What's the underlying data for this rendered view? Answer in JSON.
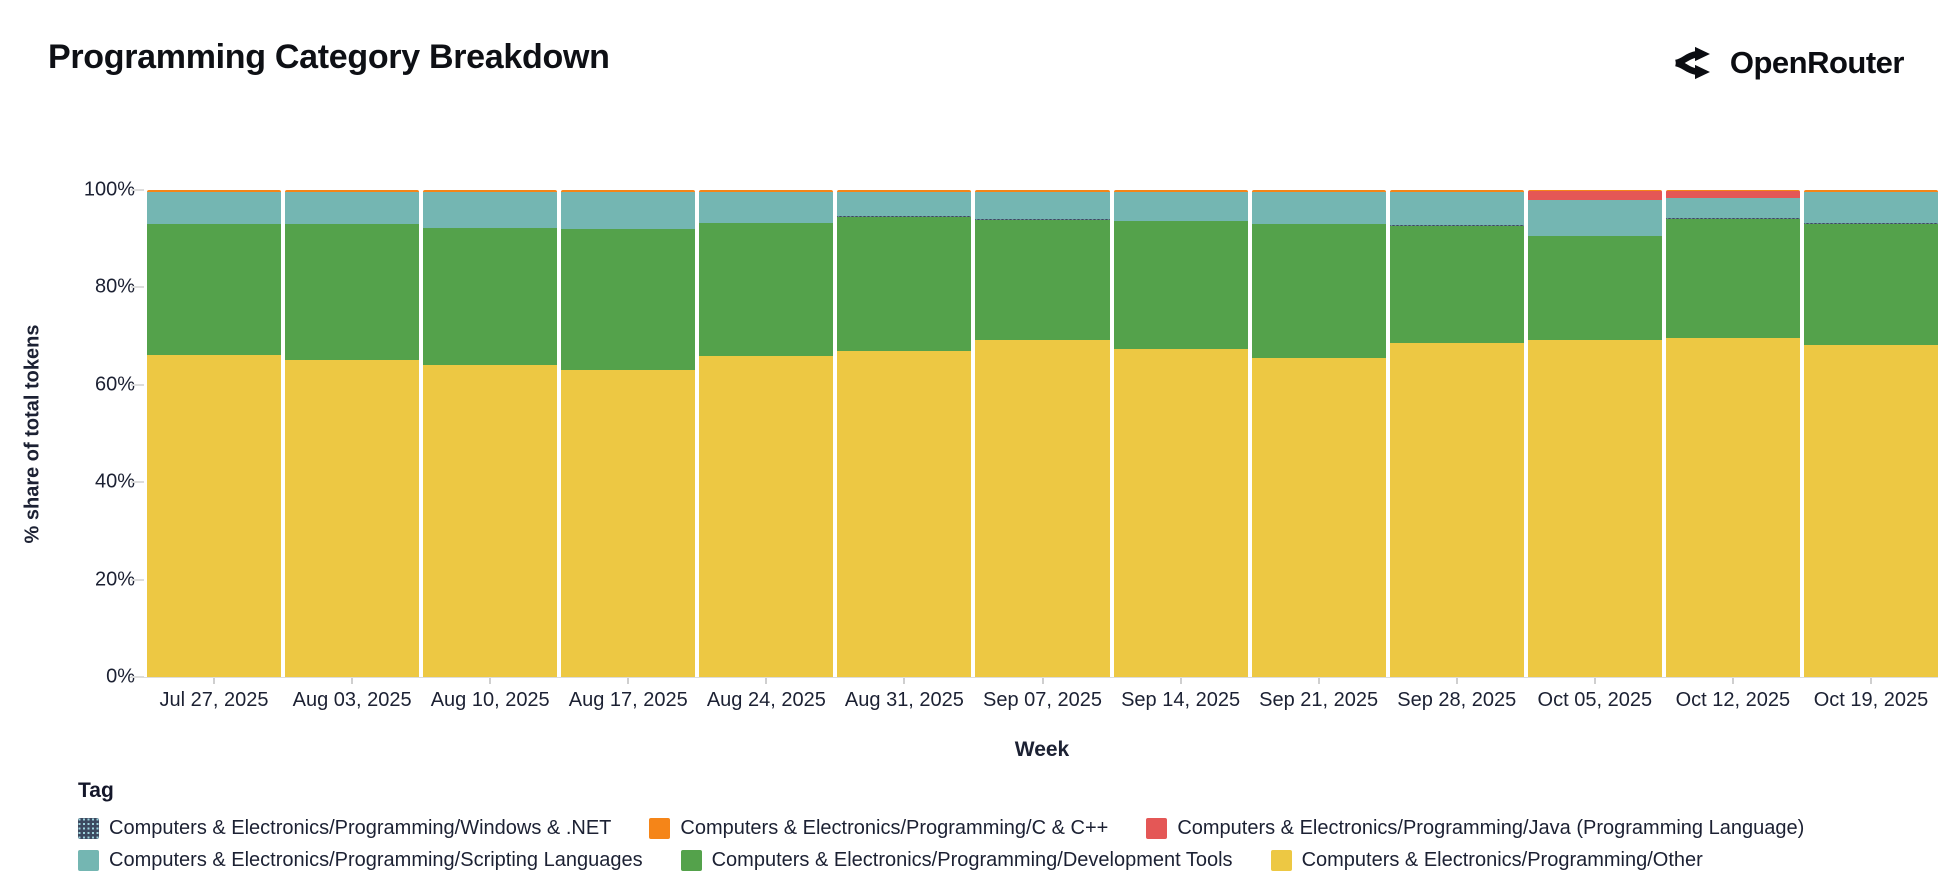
{
  "header": {
    "title": "Programming Category Breakdown",
    "brand": "OpenRouter"
  },
  "icons": {
    "brand_logo": "openrouter-fork-arrows"
  },
  "chart_data": {
    "type": "bar",
    "variant": "stacked-100-percent",
    "title": "Programming Category Breakdown",
    "xlabel": "Week",
    "ylabel": "% share of total tokens",
    "ylim": [
      0,
      100
    ],
    "yticks": [
      "0%",
      "20%",
      "40%",
      "60%",
      "80%",
      "100%"
    ],
    "grid": false,
    "legend_position": "bottom",
    "legend_title": "Tag",
    "categories": [
      "Jul 27, 2025",
      "Aug 03, 2025",
      "Aug 10, 2025",
      "Aug 17, 2025",
      "Aug 24, 2025",
      "Aug 31, 2025",
      "Sep 07, 2025",
      "Sep 14, 2025",
      "Sep 21, 2025",
      "Sep 28, 2025",
      "Oct 05, 2025",
      "Oct 12, 2025",
      "Oct 19, 2025"
    ],
    "series": [
      {
        "name": "Computers & Electronics/Programming/Other",
        "color": "#EDC843",
        "values": [
          66.2,
          65.0,
          64.0,
          63.0,
          66.0,
          67.0,
          69.2,
          67.3,
          65.5,
          68.5,
          69.3,
          69.7,
          68.1
        ]
      },
      {
        "name": "Computers & Electronics/Programming/Development Tools",
        "color": "#54A24B",
        "values": [
          26.8,
          28.0,
          28.2,
          28.9,
          27.2,
          27.5,
          24.7,
          26.3,
          27.5,
          24.2,
          21.2,
          24.4,
          25.0
        ]
      },
      {
        "name": "Computers & Electronics/Programming/Windows & .NET",
        "color": "#3C4960",
        "pattern": true,
        "values": [
          0.1,
          0.1,
          0.1,
          0.1,
          0.1,
          0.1,
          0.1,
          0.1,
          0.1,
          0.1,
          0.1,
          0.1,
          0.1
        ]
      },
      {
        "name": "Computers & Electronics/Programming/Scripting Languages",
        "color": "#74B6B2",
        "values": [
          6.4,
          6.4,
          7.2,
          7.5,
          6.2,
          4.9,
          5.5,
          5.8,
          6.4,
          6.7,
          7.4,
          4.2,
          6.3
        ]
      },
      {
        "name": "Computers & Electronics/Programming/Java (Programming Language)",
        "color": "#E45756",
        "values": [
          0.1,
          0.1,
          0.1,
          0.1,
          0.1,
          0.1,
          0.1,
          0.1,
          0.1,
          0.1,
          1.9,
          1.5,
          0.1
        ]
      },
      {
        "name": "Computers & Electronics/Programming/C & C++",
        "color": "#F58518",
        "values": [
          0.4,
          0.4,
          0.4,
          0.4,
          0.4,
          0.4,
          0.4,
          0.4,
          0.4,
          0.4,
          0.1,
          0.1,
          0.4
        ]
      }
    ],
    "legend_rows": [
      [
        {
          "label": "Computers & Electronics/Programming/Windows & .NET",
          "color": "#3C4960",
          "pattern": true
        },
        {
          "label": "Computers & Electronics/Programming/C & C++",
          "color": "#F58518"
        },
        {
          "label": "Computers & Electronics/Programming/Java (Programming Language)",
          "color": "#E45756"
        }
      ],
      [
        {
          "label": "Computers & Electronics/Programming/Scripting Languages",
          "color": "#74B6B2"
        },
        {
          "label": "Computers & Electronics/Programming/Development Tools",
          "color": "#54A24B"
        },
        {
          "label": "Computers & Electronics/Programming/Other",
          "color": "#EDC843"
        }
      ]
    ]
  }
}
